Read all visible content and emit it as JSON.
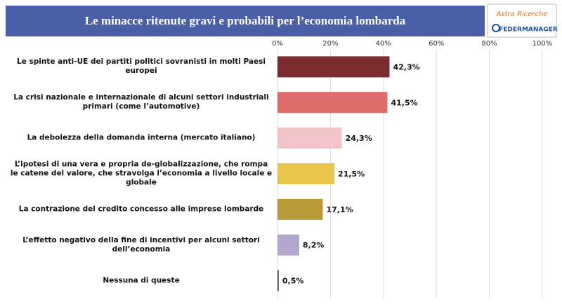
{
  "chart_data": {
    "type": "bar",
    "orientation": "horizontal",
    "title": "Le minacce ritenute gravi e probabili per l’economia lombarda",
    "logo": {
      "brand": "Astra Ricerche",
      "partner": "FEDERMANAGER"
    },
    "categories": [
      "Le spinte anti-UE dei partiti politici sovranisti in molti Paesi europei",
      "La crisi nazionale e internazionale di alcuni settori industriali primari (come l’automotive)",
      "La debolezza della domanda interna (mercato italiano)",
      "L’ipotesi di una vera e propria de-globalizzazione, che rompa le catene del valore, che stravolga l’economia a livello locale e globale",
      "La contrazione del credito concesso alle imprese lombarde",
      "L’effetto negativo della fine di incentivi per alcuni settori dell’economia",
      "Nessuna di queste"
    ],
    "values": [
      42.3,
      41.5,
      24.3,
      21.5,
      17.1,
      8.2,
      0.5
    ],
    "value_labels": [
      "42,3%",
      "41,5%",
      "24,3%",
      "21,5%",
      "17,1%",
      "8,2%",
      "0,5%"
    ],
    "colors": [
      "#7b2a2e",
      "#e06c6a",
      "#f2c4c7",
      "#e8c64a",
      "#b89a37",
      "#b3a7cf",
      "#555555"
    ],
    "xlim": [
      0,
      100
    ],
    "xticks": [
      {
        "value": 0,
        "label": "0%"
      },
      {
        "value": 20,
        "label": "20%"
      },
      {
        "value": 40,
        "label": "40%"
      },
      {
        "value": 60,
        "label": "60%"
      },
      {
        "value": 80,
        "label": "80%"
      },
      {
        "value": 100,
        "label": "100%"
      }
    ],
    "grid": true
  }
}
